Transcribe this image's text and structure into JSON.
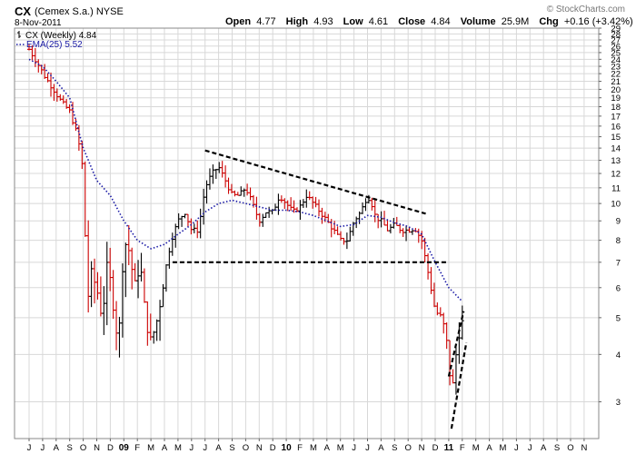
{
  "header": {
    "symbol": "CX",
    "company": "(Cemex S.a.) NYSE",
    "date": "8-Nov-2011",
    "open_label": "Open",
    "open": "4.77",
    "high_label": "High",
    "high": "4.93",
    "low_label": "Low",
    "low": "4.61",
    "close_label": "Close",
    "close": "4.84",
    "volume_label": "Volume",
    "volume": "25.9M",
    "chg_label": "Chg",
    "chg": "+0.16 (+3.42%)",
    "watermark": "© StockCharts.com"
  },
  "legend": {
    "price_label": "CX (Weekly) 4.84",
    "ema_label": "EMA(25) 5.52"
  },
  "colors": {
    "up": "#000000",
    "down": "#cc0000",
    "ema": "#1a1aa6",
    "trend": "#000000",
    "grid": "#d8d8d8",
    "border": "#888888"
  },
  "chart_data": {
    "type": "ohlc",
    "interval": "weekly",
    "scale": "log",
    "ylim": [
      2.4,
      29
    ],
    "y_ticks": [
      3,
      4,
      5,
      6,
      7,
      8,
      9,
      10,
      11,
      12,
      13,
      14,
      15,
      16,
      17,
      18,
      19,
      20,
      21,
      22,
      23,
      24,
      25,
      26,
      27,
      28,
      29
    ],
    "x_ticks": [
      {
        "label": "J",
        "year": false
      },
      {
        "label": "J",
        "year": false
      },
      {
        "label": "A",
        "year": false
      },
      {
        "label": "S",
        "year": false
      },
      {
        "label": "O",
        "year": false
      },
      {
        "label": "N",
        "year": false
      },
      {
        "label": "D",
        "year": false
      },
      {
        "label": "09",
        "year": true
      },
      {
        "label": "F",
        "year": false
      },
      {
        "label": "M",
        "year": false
      },
      {
        "label": "A",
        "year": false
      },
      {
        "label": "M",
        "year": false
      },
      {
        "label": "J",
        "year": false
      },
      {
        "label": "J",
        "year": false
      },
      {
        "label": "A",
        "year": false
      },
      {
        "label": "S",
        "year": false
      },
      {
        "label": "O",
        "year": false
      },
      {
        "label": "N",
        "year": false
      },
      {
        "label": "D",
        "year": false
      },
      {
        "label": "10",
        "year": true
      },
      {
        "label": "F",
        "year": false
      },
      {
        "label": "M",
        "year": false
      },
      {
        "label": "A",
        "year": false
      },
      {
        "label": "M",
        "year": false
      },
      {
        "label": "J",
        "year": false
      },
      {
        "label": "J",
        "year": false
      },
      {
        "label": "A",
        "year": false
      },
      {
        "label": "S",
        "year": false
      },
      {
        "label": "O",
        "year": false
      },
      {
        "label": "N",
        "year": false
      },
      {
        "label": "D",
        "year": false
      },
      {
        "label": "11",
        "year": true
      },
      {
        "label": "F",
        "year": false
      },
      {
        "label": "M",
        "year": false
      },
      {
        "label": "A",
        "year": false
      },
      {
        "label": "M",
        "year": false
      },
      {
        "label": "J",
        "year": false
      },
      {
        "label": "J",
        "year": false
      },
      {
        "label": "A",
        "year": false
      },
      {
        "label": "S",
        "year": false
      },
      {
        "label": "O",
        "year": false
      },
      {
        "label": "N",
        "year": false
      }
    ],
    "price_anchors": [
      {
        "m": 0.0,
        "p": 25.5
      },
      {
        "m": 0.6,
        "p": 23.5
      },
      {
        "m": 1.2,
        "p": 21.5
      },
      {
        "m": 1.8,
        "p": 20.0
      },
      {
        "m": 2.4,
        "p": 18.5
      },
      {
        "m": 3.0,
        "p": 17.5
      },
      {
        "m": 3.6,
        "p": 15.0
      },
      {
        "m": 4.0,
        "p": 12.0
      },
      {
        "m": 4.3,
        "p": 5.5
      },
      {
        "m": 4.6,
        "p": 6.5
      },
      {
        "m": 5.0,
        "p": 6.0
      },
      {
        "m": 5.4,
        "p": 5.0
      },
      {
        "m": 5.8,
        "p": 7.0
      },
      {
        "m": 6.2,
        "p": 5.5
      },
      {
        "m": 6.6,
        "p": 4.2
      },
      {
        "m": 7.0,
        "p": 8.0
      },
      {
        "m": 7.4,
        "p": 7.5
      },
      {
        "m": 7.8,
        "p": 6.0
      },
      {
        "m": 8.2,
        "p": 7.0
      },
      {
        "m": 8.6,
        "p": 5.0
      },
      {
        "m": 9.0,
        "p": 4.3
      },
      {
        "m": 9.5,
        "p": 5.0
      },
      {
        "m": 10.0,
        "p": 6.5
      },
      {
        "m": 10.5,
        "p": 8.0
      },
      {
        "m": 11.0,
        "p": 9.0
      },
      {
        "m": 11.5,
        "p": 9.5
      },
      {
        "m": 12.0,
        "p": 8.5
      },
      {
        "m": 12.5,
        "p": 8.5
      },
      {
        "m": 13.0,
        "p": 11.0
      },
      {
        "m": 13.5,
        "p": 12.0
      },
      {
        "m": 14.0,
        "p": 12.5
      },
      {
        "m": 14.5,
        "p": 11.5
      },
      {
        "m": 15.0,
        "p": 10.5
      },
      {
        "m": 15.5,
        "p": 10.5
      },
      {
        "m": 16.0,
        "p": 11.0
      },
      {
        "m": 16.5,
        "p": 10.0
      },
      {
        "m": 17.0,
        "p": 9.0
      },
      {
        "m": 17.5,
        "p": 9.5
      },
      {
        "m": 18.0,
        "p": 9.5
      },
      {
        "m": 18.5,
        "p": 10.5
      },
      {
        "m": 19.0,
        "p": 10.0
      },
      {
        "m": 19.5,
        "p": 9.5
      },
      {
        "m": 20.0,
        "p": 9.8
      },
      {
        "m": 20.5,
        "p": 10.5
      },
      {
        "m": 21.0,
        "p": 10.0
      },
      {
        "m": 21.5,
        "p": 9.5
      },
      {
        "m": 22.0,
        "p": 9.0
      },
      {
        "m": 22.5,
        "p": 8.5
      },
      {
        "m": 23.0,
        "p": 8.0
      },
      {
        "m": 23.5,
        "p": 8.0
      },
      {
        "m": 24.0,
        "p": 9.0
      },
      {
        "m": 24.5,
        "p": 9.5
      },
      {
        "m": 25.0,
        "p": 10.5
      },
      {
        "m": 25.3,
        "p": 10.0
      },
      {
        "m": 25.6,
        "p": 9.2
      },
      {
        "m": 26.0,
        "p": 9.0
      },
      {
        "m": 26.5,
        "p": 8.5
      },
      {
        "m": 27.0,
        "p": 8.8
      },
      {
        "m": 27.5,
        "p": 8.5
      },
      {
        "m": 28.0,
        "p": 8.5
      },
      {
        "m": 28.5,
        "p": 8.6
      },
      {
        "m": 29.0,
        "p": 8.0
      },
      {
        "m": 29.5,
        "p": 6.5
      },
      {
        "m": 30.0,
        "p": 5.2
      },
      {
        "m": 30.5,
        "p": 5.0
      },
      {
        "m": 31.0,
        "p": 4.0
      },
      {
        "m": 31.2,
        "p": 3.0
      },
      {
        "m": 31.4,
        "p": 3.6
      },
      {
        "m": 31.7,
        "p": 4.5
      },
      {
        "m": 32.0,
        "p": 4.84
      }
    ],
    "ema_anchors": [
      {
        "m": 0.0,
        "p": 24.0
      },
      {
        "m": 1.0,
        "p": 23.0
      },
      {
        "m": 2.0,
        "p": 21.0
      },
      {
        "m": 3.0,
        "p": 19.0
      },
      {
        "m": 4.0,
        "p": 14.0
      },
      {
        "m": 5.0,
        "p": 11.5
      },
      {
        "m": 6.0,
        "p": 10.5
      },
      {
        "m": 7.0,
        "p": 9.0
      },
      {
        "m": 8.0,
        "p": 8.0
      },
      {
        "m": 9.0,
        "p": 7.6
      },
      {
        "m": 10.0,
        "p": 7.8
      },
      {
        "m": 11.0,
        "p": 8.3
      },
      {
        "m": 12.0,
        "p": 8.8
      },
      {
        "m": 13.0,
        "p": 9.5
      },
      {
        "m": 14.0,
        "p": 10.0
      },
      {
        "m": 15.0,
        "p": 10.2
      },
      {
        "m": 16.0,
        "p": 10.0
      },
      {
        "m": 17.0,
        "p": 9.8
      },
      {
        "m": 18.0,
        "p": 9.6
      },
      {
        "m": 19.0,
        "p": 9.6
      },
      {
        "m": 20.0,
        "p": 9.5
      },
      {
        "m": 21.0,
        "p": 9.3
      },
      {
        "m": 22.0,
        "p": 9.0
      },
      {
        "m": 23.0,
        "p": 8.7
      },
      {
        "m": 24.0,
        "p": 8.8
      },
      {
        "m": 25.0,
        "p": 9.3
      },
      {
        "m": 26.0,
        "p": 9.2
      },
      {
        "m": 27.0,
        "p": 8.9
      },
      {
        "m": 28.0,
        "p": 8.7
      },
      {
        "m": 29.0,
        "p": 8.3
      },
      {
        "m": 30.0,
        "p": 7.0
      },
      {
        "m": 31.0,
        "p": 6.0
      },
      {
        "m": 32.0,
        "p": 5.52
      }
    ],
    "trendlines": [
      {
        "name": "descending-resistance",
        "m1": 13.0,
        "p1": 13.8,
        "m2": 29.3,
        "p2": 9.4
      },
      {
        "name": "horizontal-support",
        "m1": 10.6,
        "p1": 7.0,
        "m2": 30.8,
        "p2": 7.0
      },
      {
        "name": "wedge-upper",
        "m1": 31.0,
        "p1": 3.5,
        "m2": 32.1,
        "p2": 5.2
      },
      {
        "name": "wedge-lower",
        "m1": 31.2,
        "p1": 2.55,
        "m2": 32.3,
        "p2": 4.3
      }
    ]
  }
}
